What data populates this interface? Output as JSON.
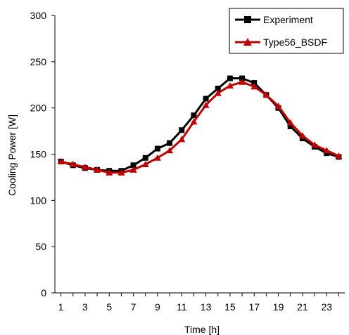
{
  "chart_data": {
    "type": "line",
    "xlabel": "Time [h]",
    "ylabel": "Cooling Power [W]",
    "xlim": [
      0.5,
      24.5
    ],
    "ylim": [
      0,
      300
    ],
    "x_ticks": [
      1,
      3,
      5,
      7,
      9,
      11,
      13,
      15,
      17,
      19,
      21,
      23
    ],
    "y_ticks": [
      0,
      50,
      100,
      150,
      200,
      250,
      300
    ],
    "grid": false,
    "legend": "top-right",
    "x": [
      1,
      2,
      3,
      4,
      5,
      6,
      7,
      8,
      9,
      10,
      11,
      12,
      13,
      14,
      15,
      16,
      17,
      18,
      19,
      20,
      21,
      22,
      23,
      24
    ],
    "series": [
      {
        "name": "Experiment",
        "color": "#000000",
        "marker": "square",
        "values": [
          142,
          138,
          135,
          133,
          132,
          132,
          138,
          146,
          156,
          162,
          176,
          192,
          210,
          221,
          232,
          232,
          227,
          214,
          200,
          180,
          167,
          158,
          151,
          147
        ]
      },
      {
        "name": "Type56_BSDF",
        "color": "#c00000",
        "marker": "triangle",
        "values": [
          142,
          139,
          136,
          133,
          130,
          130,
          133,
          139,
          146,
          154,
          166,
          185,
          203,
          216,
          224,
          228,
          223,
          214,
          202,
          184,
          170,
          160,
          154,
          148
        ]
      }
    ]
  }
}
